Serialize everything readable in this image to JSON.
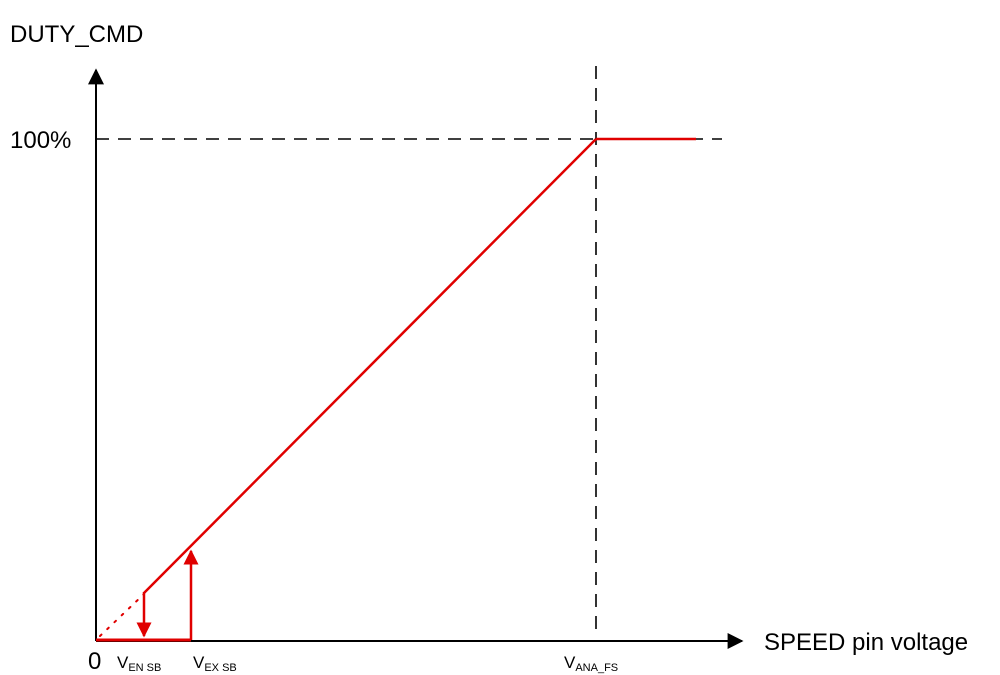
{
  "y_axis_label": "DUTY_CMD",
  "x_axis_label": "SPEED pin voltage",
  "y_tick_100": "100%",
  "origin_label": "0",
  "markers": {
    "v_en_sb": {
      "main": "V",
      "sub": "EN SB"
    },
    "v_ex_sb": {
      "main": "V",
      "sub": "EX SB"
    },
    "v_ana_fs": {
      "main": "V",
      "sub": "ANA_FS"
    }
  },
  "colors": {
    "curve": "#e00000",
    "axes": "#000000",
    "guides": "#000000"
  }
}
